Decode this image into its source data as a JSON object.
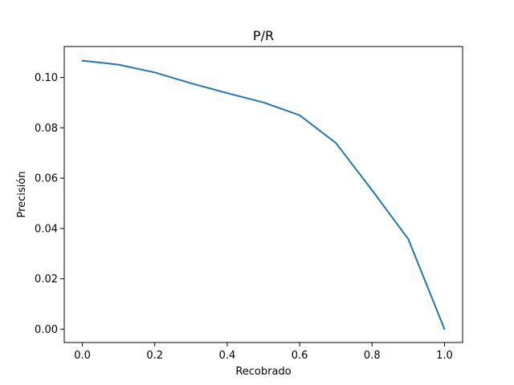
{
  "chart_data": {
    "type": "line",
    "title": "P/R",
    "xlabel": "Recobrado",
    "ylabel": "Precisión",
    "xlim": [
      -0.05,
      1.05
    ],
    "ylim": [
      -0.0053,
      0.1123
    ],
    "xticks": [
      0.0,
      0.2,
      0.4,
      0.6,
      0.8,
      1.0
    ],
    "xtick_labels": [
      "0.0",
      "0.2",
      "0.4",
      "0.6",
      "0.8",
      "1.0"
    ],
    "yticks": [
      0.0,
      0.02,
      0.04,
      0.06,
      0.08,
      0.1
    ],
    "ytick_labels": [
      "0.00",
      "0.02",
      "0.04",
      "0.06",
      "0.08",
      "0.10"
    ],
    "grid": false,
    "series": [
      {
        "color": "#1f77b4",
        "x": [
          0.0,
          0.1,
          0.2,
          0.3,
          0.4,
          0.5,
          0.6,
          0.7,
          0.8,
          0.9,
          1.0
        ],
        "y": [
          0.1067,
          0.1051,
          0.102,
          0.0977,
          0.0938,
          0.0901,
          0.085,
          0.074,
          0.0552,
          0.0358,
          0.0
        ]
      }
    ]
  }
}
